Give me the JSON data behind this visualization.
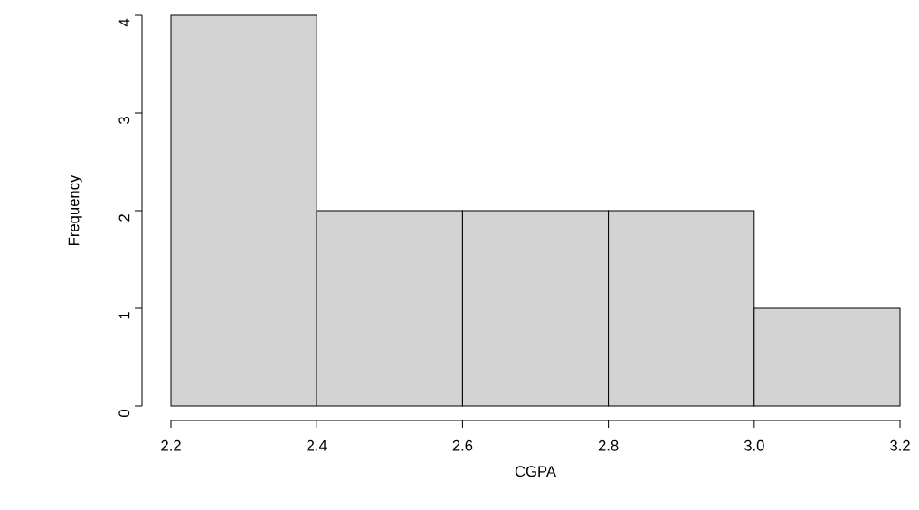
{
  "chart_data": {
    "type": "histogram",
    "xlabel": "CGPA",
    "ylabel": "Frequency",
    "bins": [
      2.2,
      2.4,
      2.6,
      2.8,
      3.0,
      3.2
    ],
    "values": [
      4,
      2,
      2,
      2,
      1
    ],
    "color": "#d3d3d3",
    "xlim": [
      2.2,
      3.2
    ],
    "ylim": [
      0,
      4
    ],
    "xticks": [
      2.2,
      2.4,
      2.6,
      2.8,
      {
        "value": 3.0,
        "label": "3.0"
      },
      3.2
    ],
    "yticks": [
      0,
      1,
      2,
      3,
      4
    ]
  }
}
